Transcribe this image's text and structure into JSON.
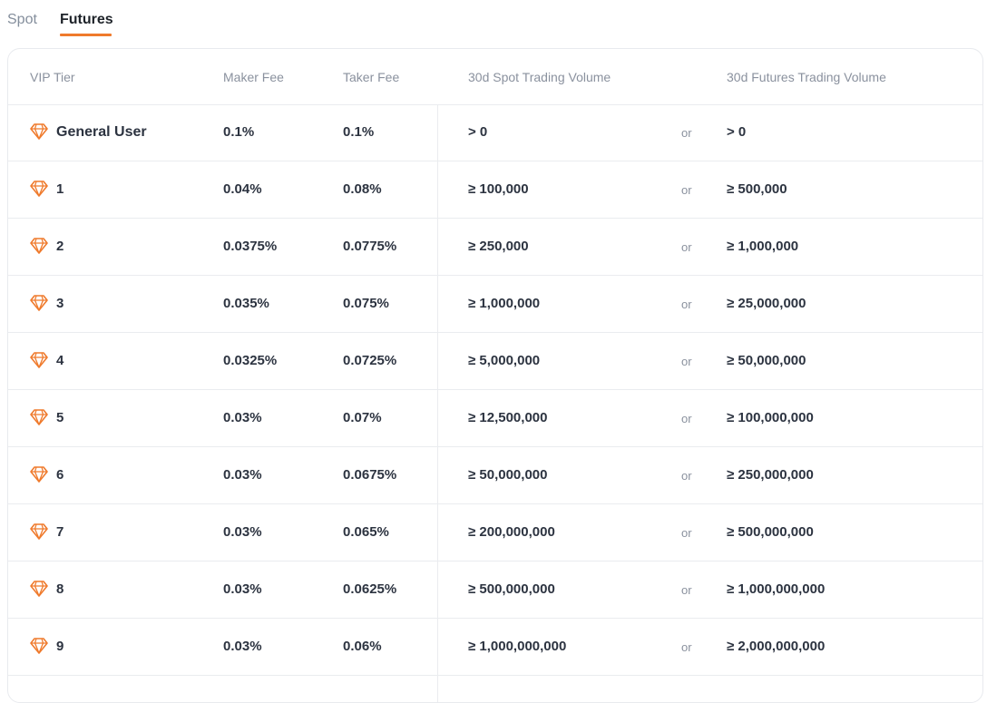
{
  "tabs": [
    {
      "label": "Spot",
      "active": false
    },
    {
      "label": "Futures",
      "active": true
    }
  ],
  "colors": {
    "accent": "#ef7a2c",
    "text_primary": "#2c3340",
    "text_muted": "#8a919e",
    "border": "#eaecef"
  },
  "table": {
    "headers": {
      "tier": "VIP Tier",
      "maker": "Maker Fee",
      "taker": "Taker Fee",
      "spot_volume": "30d Spot Trading Volume",
      "futures_volume": "30d Futures Trading Volume"
    },
    "tier_icon": "diamond-icon",
    "rows": [
      {
        "tier": "General User",
        "maker": "0.1%",
        "taker": "0.1%",
        "spot": "> 0",
        "or": "or",
        "futures": "> 0"
      },
      {
        "tier": "1",
        "maker": "0.04%",
        "taker": "0.08%",
        "spot": "≥ 100,000",
        "or": "or",
        "futures": "≥ 500,000"
      },
      {
        "tier": "2",
        "maker": "0.0375%",
        "taker": "0.0775%",
        "spot": "≥ 250,000",
        "or": "or",
        "futures": "≥ 1,000,000"
      },
      {
        "tier": "3",
        "maker": "0.035%",
        "taker": "0.075%",
        "spot": "≥ 1,000,000",
        "or": "or",
        "futures": "≥ 25,000,000"
      },
      {
        "tier": "4",
        "maker": "0.0325%",
        "taker": "0.0725%",
        "spot": "≥ 5,000,000",
        "or": "or",
        "futures": "≥ 50,000,000"
      },
      {
        "tier": "5",
        "maker": "0.03%",
        "taker": "0.07%",
        "spot": "≥ 12,500,000",
        "or": "or",
        "futures": "≥ 100,000,000"
      },
      {
        "tier": "6",
        "maker": "0.03%",
        "taker": "0.0675%",
        "spot": "≥ 50,000,000",
        "or": "or",
        "futures": "≥ 250,000,000"
      },
      {
        "tier": "7",
        "maker": "0.03%",
        "taker": "0.065%",
        "spot": "≥ 200,000,000",
        "or": "or",
        "futures": "≥ 500,000,000"
      },
      {
        "tier": "8",
        "maker": "0.03%",
        "taker": "0.0625%",
        "spot": "≥ 500,000,000",
        "or": "or",
        "futures": "≥ 1,000,000,000"
      },
      {
        "tier": "9",
        "maker": "0.03%",
        "taker": "0.06%",
        "spot": "≥ 1,000,000,000",
        "or": "or",
        "futures": "≥ 2,000,000,000"
      }
    ]
  }
}
